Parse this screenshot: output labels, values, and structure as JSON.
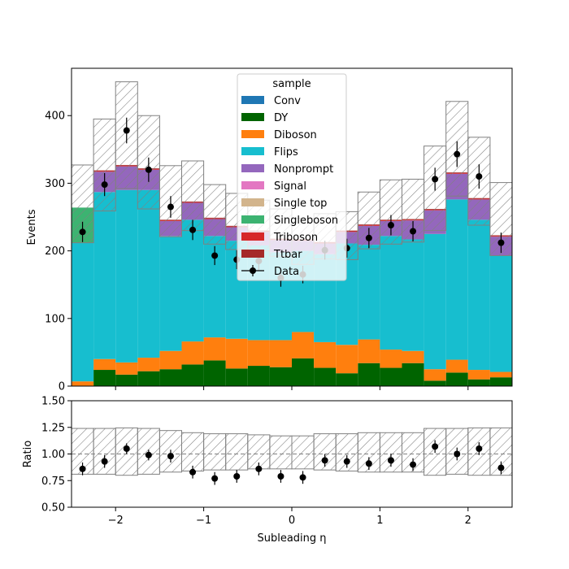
{
  "chart_data": [
    {
      "type": "bar",
      "stacked": true,
      "x_edges": [
        -2.5,
        -2.25,
        -2.0,
        -1.75,
        -1.5,
        -1.25,
        -1.0,
        -0.75,
        -0.5,
        -0.25,
        0.0,
        0.25,
        0.5,
        0.75,
        1.0,
        1.25,
        1.5,
        1.75,
        2.0,
        2.25,
        2.5
      ],
      "xlim": [
        -2.5,
        2.5
      ],
      "ylim": [
        0,
        470
      ],
      "ylabel": "Events",
      "yticks": [
        "0",
        "100",
        "200",
        "300",
        "400"
      ],
      "legend_title": "sample",
      "legend_position": "upper-center",
      "series": [
        {
          "name": "Conv",
          "color": "#1f77b4",
          "values": [
            0,
            0,
            0,
            0,
            0,
            0,
            0,
            0,
            0,
            0,
            0,
            0,
            0,
            0,
            0,
            0,
            0,
            0,
            0,
            0
          ]
        },
        {
          "name": "DY",
          "color": "#006400",
          "values": [
            0,
            24,
            17,
            22,
            25,
            32,
            38,
            26,
            30,
            28,
            41,
            27,
            19,
            34,
            27,
            34,
            8,
            20,
            10,
            13
          ]
        },
        {
          "name": "Diboson",
          "color": "#ff7f0e",
          "values": [
            7,
            16,
            18,
            20,
            27,
            34,
            34,
            44,
            38,
            40,
            39,
            38,
            42,
            35,
            27,
            18,
            17,
            19,
            14,
            8
          ]
        },
        {
          "name": "Flips",
          "color": "#17becf",
          "values": [
            205,
            247,
            255,
            248,
            170,
            180,
            150,
            145,
            140,
            130,
            120,
            130,
            150,
            140,
            168,
            165,
            200,
            237,
            222,
            172
          ]
        },
        {
          "name": "Nonprompt",
          "color": "#9467bd",
          "values": [
            0,
            30,
            35,
            30,
            22,
            25,
            25,
            20,
            20,
            18,
            15,
            16,
            17,
            28,
            22,
            28,
            35,
            38,
            30,
            28
          ]
        },
        {
          "name": "Signal",
          "color": "#e377c2",
          "values": [
            0,
            0,
            0,
            0,
            0,
            0,
            0,
            0,
            0,
            0,
            0,
            0,
            0,
            0,
            0,
            0,
            0,
            0,
            0,
            0
          ]
        },
        {
          "name": "Single top",
          "color": "#d2b48c",
          "values": [
            0,
            0,
            0,
            0,
            0,
            0,
            0,
            0,
            0,
            0,
            0,
            0,
            0,
            0,
            0,
            0,
            0,
            0,
            0,
            0
          ]
        },
        {
          "name": "Singleboson",
          "color": "#3cb371",
          "values": [
            52,
            0,
            0,
            0,
            0,
            0,
            0,
            0,
            0,
            0,
            0,
            0,
            0,
            0,
            0,
            0,
            0,
            0,
            0,
            0
          ]
        },
        {
          "name": "Triboson",
          "color": "#d62728",
          "values": [
            0,
            1,
            1,
            1,
            1,
            1,
            1,
            1,
            1,
            1,
            1,
            1,
            1,
            1,
            1,
            1,
            1,
            1,
            1,
            1
          ]
        },
        {
          "name": "Ttbar",
          "color": "#a52a2a",
          "values": [
            0,
            1,
            1,
            1,
            1,
            1,
            1,
            1,
            1,
            1,
            1,
            1,
            1,
            1,
            1,
            1,
            1,
            1,
            1,
            1
          ]
        }
      ],
      "uncertainty_band": {
        "up": [
          327,
          395,
          450,
          400,
          326,
          333,
          298,
          285,
          275,
          262,
          248,
          255,
          258,
          287,
          305,
          306,
          355,
          421,
          368,
          301
        ],
        "down": [
          212,
          259,
          292,
          262,
          221,
          230,
          210,
          202,
          200,
          192,
          180,
          188,
          187,
          203,
          210,
          213,
          230,
          281,
          238,
          193
        ]
      },
      "data_points": {
        "name": "Data",
        "x": [
          -2.375,
          -2.125,
          -1.875,
          -1.625,
          -1.375,
          -1.125,
          -0.875,
          -0.625,
          -0.375,
          -0.125,
          0.125,
          0.375,
          0.625,
          0.875,
          1.125,
          1.375,
          1.625,
          1.875,
          2.125,
          2.375
        ],
        "y": [
          228,
          298,
          378,
          320,
          265,
          231,
          193,
          187,
          185,
          160,
          165,
          201,
          204,
          219,
          238,
          229,
          306,
          343,
          310,
          212
        ],
        "err": [
          15,
          17,
          19,
          18,
          16,
          15,
          14,
          14,
          14,
          13,
          13,
          14,
          14,
          15,
          15,
          15,
          17,
          19,
          18,
          15
        ]
      }
    },
    {
      "type": "scatter",
      "xlim": [
        -2.5,
        2.5
      ],
      "ylim": [
        0.5,
        1.5
      ],
      "ylabel": "Ratio",
      "xlabel": "Subleading η",
      "yticks": [
        "0.50",
        "0.75",
        "1.00",
        "1.25",
        "1.50"
      ],
      "xticks": [
        "−2",
        "−1",
        "0",
        "1",
        "2"
      ],
      "reference_line": 1.0,
      "uncertainty_band": {
        "up": [
          1.24,
          1.24,
          1.245,
          1.24,
          1.22,
          1.2,
          1.19,
          1.19,
          1.18,
          1.17,
          1.17,
          1.19,
          1.19,
          1.2,
          1.2,
          1.2,
          1.24,
          1.24,
          1.245,
          1.245
        ],
        "down": [
          0.81,
          0.81,
          0.8,
          0.81,
          0.83,
          0.84,
          0.85,
          0.85,
          0.86,
          0.86,
          0.86,
          0.85,
          0.84,
          0.83,
          0.83,
          0.83,
          0.8,
          0.81,
          0.8,
          0.8
        ]
      },
      "points": {
        "x": [
          -2.375,
          -2.125,
          -1.875,
          -1.625,
          -1.375,
          -1.125,
          -0.875,
          -0.625,
          -0.375,
          -0.125,
          0.125,
          0.375,
          0.625,
          0.875,
          1.125,
          1.375,
          1.625,
          1.875,
          2.125,
          2.375
        ],
        "y": [
          0.86,
          0.93,
          1.05,
          0.99,
          0.98,
          0.83,
          0.77,
          0.79,
          0.86,
          0.79,
          0.78,
          0.94,
          0.93,
          0.91,
          0.94,
          0.9,
          1.07,
          1.0,
          1.05,
          0.87
        ],
        "err": [
          0.06,
          0.06,
          0.05,
          0.05,
          0.06,
          0.06,
          0.06,
          0.06,
          0.06,
          0.06,
          0.06,
          0.06,
          0.06,
          0.06,
          0.06,
          0.06,
          0.06,
          0.06,
          0.06,
          0.06
        ]
      }
    }
  ]
}
